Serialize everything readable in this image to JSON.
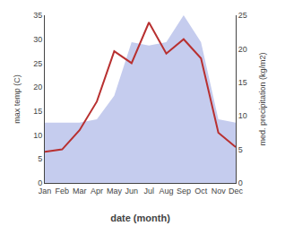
{
  "chart_data": {
    "type": "line",
    "categories": [
      "Jan",
      "Feb",
      "Mar",
      "Apr",
      "May",
      "Jun",
      "Jul",
      "Aug",
      "Sep",
      "Oct",
      "Nov",
      "Dec"
    ],
    "xlabel": "date (month)",
    "ylabel": "max temp (C)",
    "y2label": "med. precipitation (kg/m2)",
    "series": [
      {
        "type": "area",
        "axis": "y2",
        "color": "#c5ccee",
        "values": [
          9.0,
          9.0,
          9.0,
          9.5,
          13.0,
          21.0,
          20.5,
          21.0,
          25.0,
          21.0,
          9.5,
          9.0
        ]
      },
      {
        "type": "line",
        "color": "#b83030",
        "values": [
          6.5,
          7.0,
          11.0,
          17.0,
          27.5,
          25.0,
          33.5,
          27.0,
          30.0,
          26.0,
          10.5,
          7.5
        ]
      }
    ],
    "ylim": [
      0,
      35
    ],
    "yticks": [
      0,
      5,
      10,
      15,
      20,
      25,
      30,
      35
    ],
    "y2lim": [
      0,
      25
    ],
    "y2ticks": [
      0,
      5,
      10,
      15,
      20,
      25
    ],
    "grid": false
  }
}
